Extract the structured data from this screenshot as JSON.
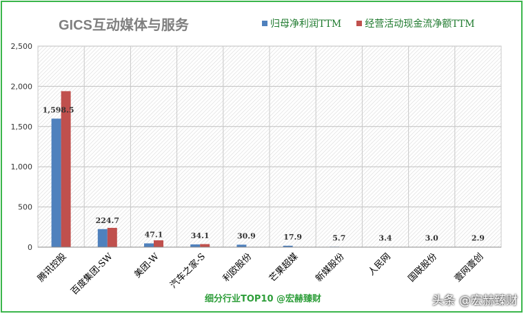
{
  "chart_data": {
    "type": "bar",
    "title": "GICS互动媒体与服务",
    "categories": [
      "腾讯控股",
      "百度集团-SW",
      "美团-W",
      "汽车之家-S",
      "利欧股份",
      "芒果超媒",
      "新媒股份",
      "人民网",
      "国联股份",
      "壹网壹创"
    ],
    "series": [
      {
        "name": "归母净利润TTM",
        "color": "#4f81bd",
        "values": [
          1598.5,
          224.7,
          47.1,
          34.1,
          30.9,
          17.9,
          5.7,
          3.4,
          3.0,
          2.9
        ]
      },
      {
        "name": "经营活动现金流净额TTM",
        "color": "#c0504d",
        "values": [
          1940,
          240,
          85,
          38,
          0,
          0,
          0,
          0,
          0,
          0
        ]
      }
    ],
    "data_labels": [
      "1,598.5",
      "224.7",
      "47.1",
      "34.1",
      "30.9",
      "17.9",
      "5.7",
      "3.4",
      "3.0",
      "2.9"
    ],
    "yticks": [
      "0",
      "500",
      "1,000",
      "1,500",
      "2,000",
      "2,500"
    ],
    "ylim": [
      0,
      2500
    ],
    "xlabel": "",
    "ylabel": "",
    "legend_position": "top-right",
    "grid": true
  },
  "footer": "细分行业TOP10 @宏赫臻财",
  "watermark": "头条 @宏赫臻财"
}
